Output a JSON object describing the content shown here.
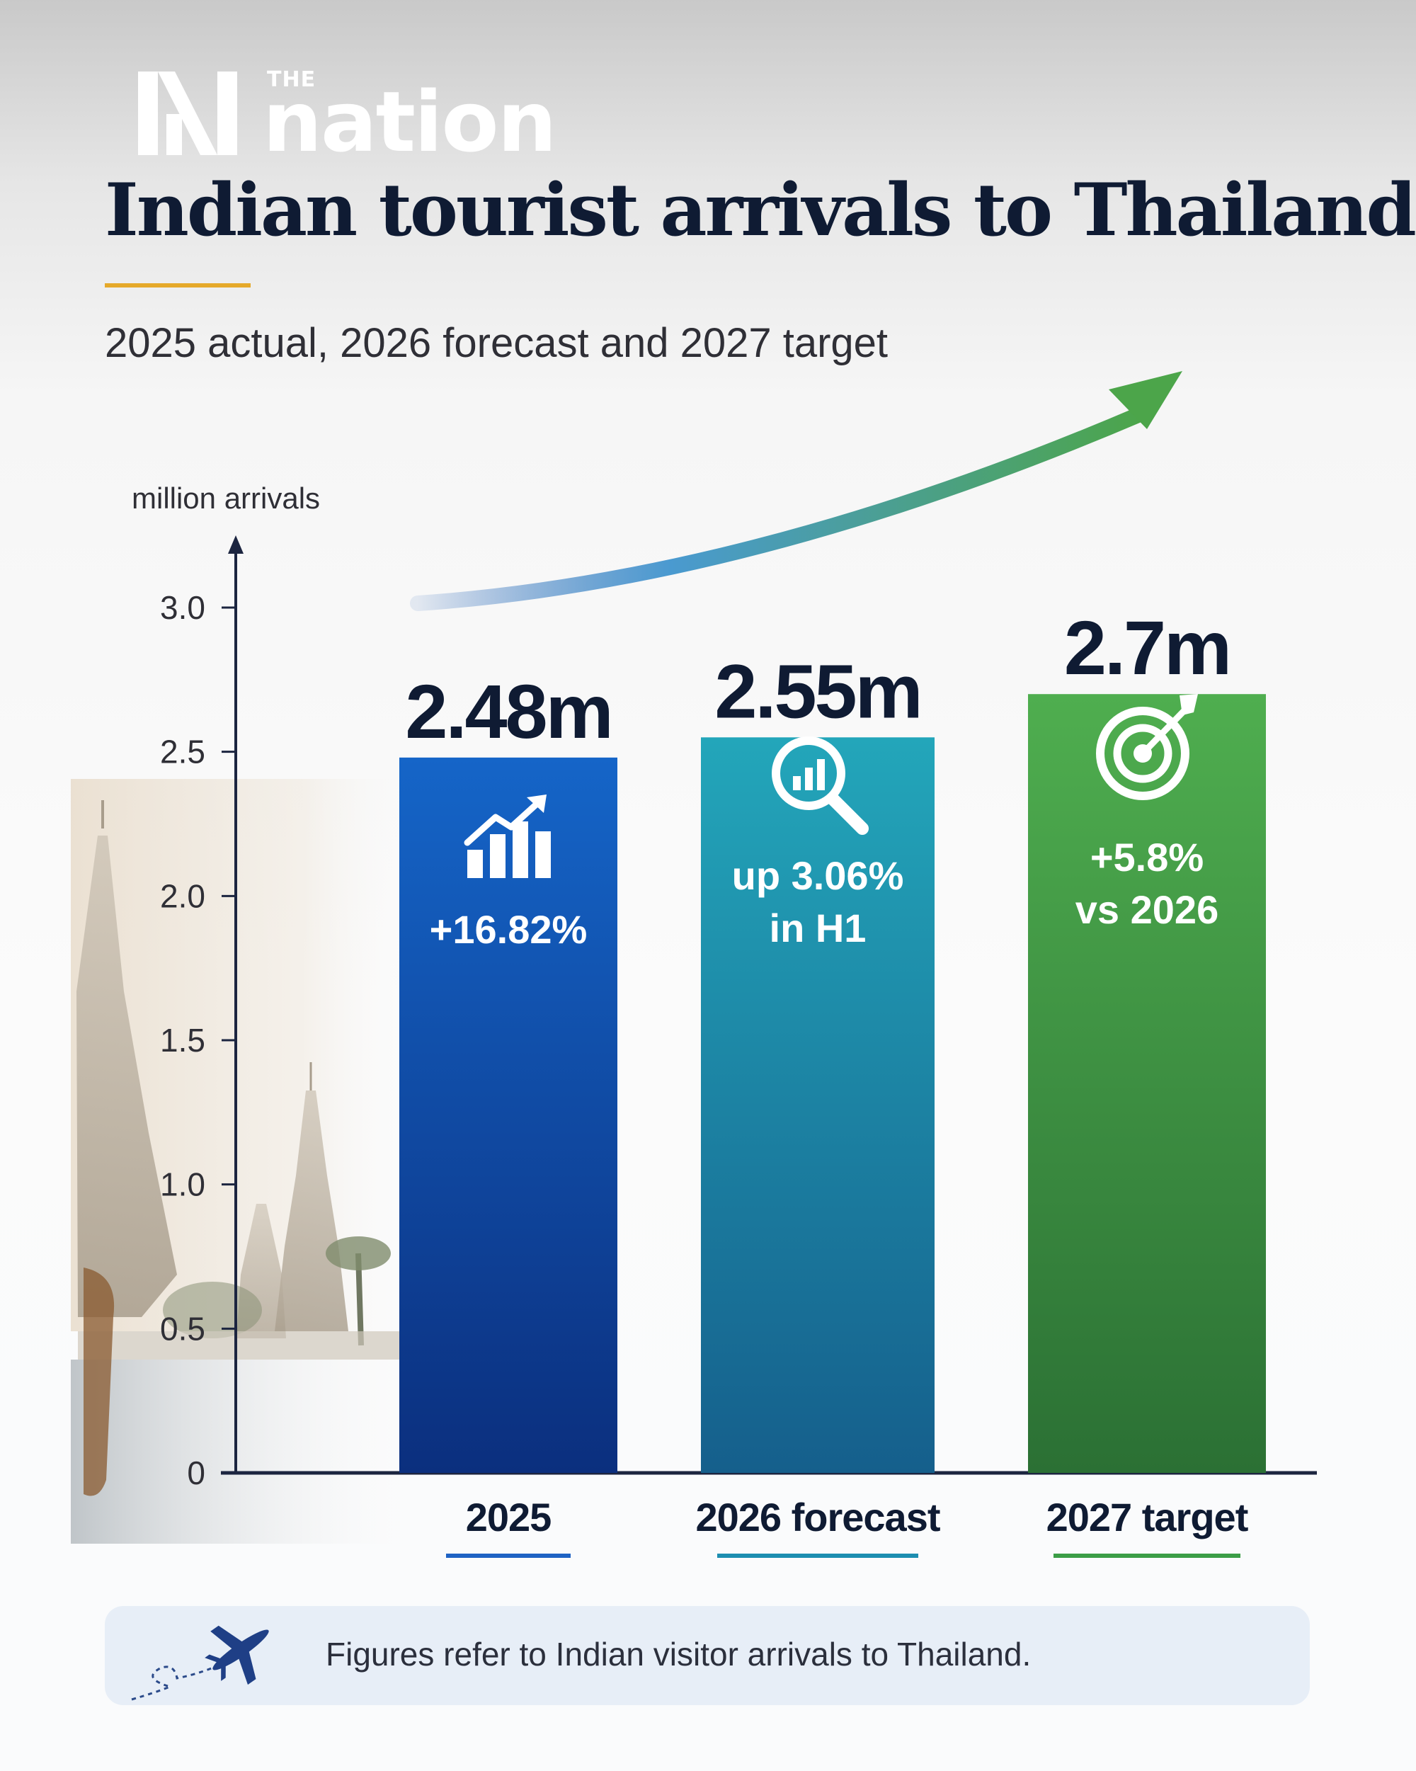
{
  "brand": {
    "the": "THE",
    "name": "nation"
  },
  "header": {
    "title": "Indian tourist arrivals to Thailand",
    "subtitle": "2025 actual, 2026 forecast and 2027 target"
  },
  "colors": {
    "navy": "#0f1b33",
    "gold": "#e5a92a",
    "blue": "#0d45a8",
    "teal": "#1b8ca4",
    "green": "#3c9e47"
  },
  "chart_data": {
    "type": "bar",
    "ylabel": "million arrivals",
    "ylim": [
      0,
      3.0
    ],
    "yticks": [
      "0",
      "0.5",
      "1.0",
      "1.5",
      "2.0",
      "2.5",
      "3.0"
    ],
    "grid": false,
    "categories": [
      "2025",
      "2026 forecast",
      "2027 target"
    ],
    "values": [
      2.48,
      2.55,
      2.7
    ],
    "value_labels": [
      "2.48m",
      "2.55m",
      "2.7m"
    ],
    "bars": [
      {
        "note": "+16.82%",
        "icon": "growth-chart-icon",
        "color": "#0d45a8"
      },
      {
        "note": "up 3.06%\nin H1",
        "icon": "magnifier-chart-icon",
        "color": "#1b8ca4"
      },
      {
        "note": "+5.8%\nvs 2026",
        "icon": "target-icon",
        "color": "#3c9e47"
      }
    ],
    "trend_arrow": "upward"
  },
  "footnote": {
    "text": "Figures refer to Indian visitor arrivals to Thailand.",
    "icon": "airplane-icon"
  }
}
